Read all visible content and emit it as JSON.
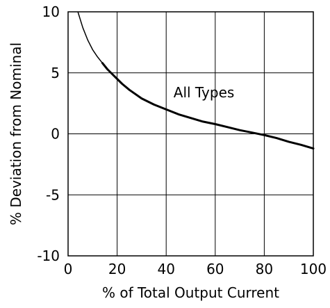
{
  "chart_data": {
    "type": "line",
    "title": "",
    "xlabel": "% of Total Output Current",
    "ylabel": "% Deviation from Nominal",
    "xlim": [
      0,
      100
    ],
    "ylim": [
      -10,
      10
    ],
    "x_ticks": [
      0,
      20,
      40,
      60,
      80,
      100
    ],
    "y_ticks": [
      10,
      5,
      0,
      -5,
      -10
    ],
    "x_tick_labels": [
      "0",
      "20",
      "40",
      "60",
      "80",
      "100"
    ],
    "y_tick_labels": [
      "10",
      "5",
      "0",
      "-5",
      "-10"
    ],
    "grid": true,
    "annotations": [
      {
        "text": "All Types",
        "x": 43,
        "y": 3.0
      }
    ],
    "series": [
      {
        "name": "",
        "color": "#000000",
        "x": [
          4,
          6,
          8,
          10,
          12,
          14,
          16,
          18,
          20,
          22,
          25,
          30,
          35,
          40,
          45,
          50,
          55,
          60,
          65,
          70,
          75,
          80,
          85,
          90,
          95,
          100
        ],
        "y": [
          10,
          8.7,
          7.7,
          6.9,
          6.3,
          5.8,
          5.3,
          4.9,
          4.5,
          4.1,
          3.6,
          2.9,
          2.4,
          2.0,
          1.6,
          1.3,
          1.0,
          0.8,
          0.55,
          0.3,
          0.1,
          -0.1,
          -0.35,
          -0.65,
          -0.9,
          -1.2
        ]
      }
    ]
  }
}
